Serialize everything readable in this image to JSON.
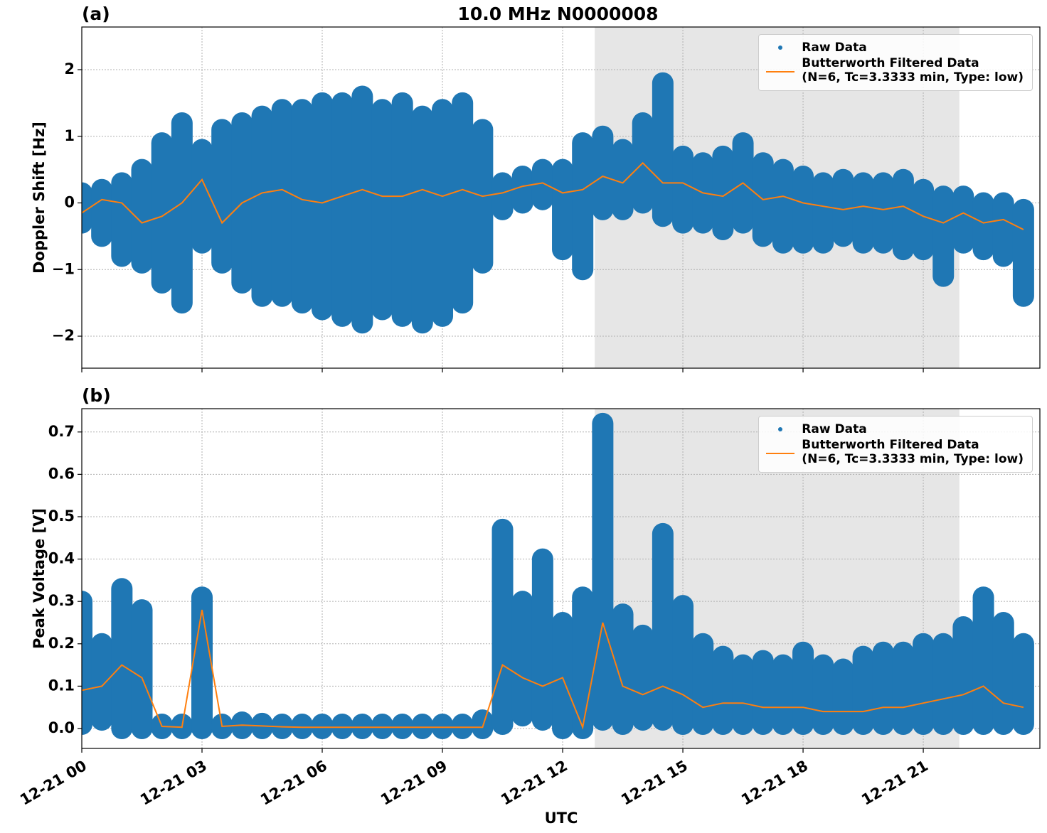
{
  "chart_data": [
    {
      "type": "line",
      "label": "(a)",
      "title": "10.0 MHz N0000008",
      "ylabel": "Doppler Shift [Hz]",
      "xlim": [
        0,
        23.91
      ],
      "ylim": [
        -2.48,
        2.64
      ],
      "yticks": [
        {
          "value": -2,
          "label": "−2"
        },
        {
          "value": -1,
          "label": "−1"
        },
        0,
        1,
        2
      ],
      "grid": true,
      "legend": "upper right",
      "span": [
        12.8,
        21.9
      ],
      "x": [
        0,
        0.5,
        1,
        1.5,
        2,
        2.5,
        3,
        3.5,
        4,
        4.5,
        5,
        5.5,
        6,
        6.5,
        7,
        7.5,
        8,
        8.5,
        9,
        9.5,
        10,
        10.5,
        11,
        11.5,
        12,
        12.5,
        13,
        13.5,
        14,
        14.5,
        15,
        15.5,
        16,
        16.5,
        17,
        17.5,
        18,
        18.5,
        19,
        19.5,
        20,
        20.5,
        21,
        21.5,
        22,
        22.5,
        23,
        23.5
      ],
      "series": [
        {
          "name": "Raw Data",
          "type": "scatter",
          "color": "#1f77b4",
          "high": [
            0.15,
            0.2,
            0.3,
            0.5,
            0.9,
            1.2,
            0.8,
            1.1,
            1.2,
            1.3,
            1.4,
            1.4,
            1.5,
            1.5,
            1.6,
            1.4,
            1.5,
            1.3,
            1.4,
            1.5,
            1.1,
            0.3,
            0.4,
            0.5,
            0.5,
            0.9,
            1.0,
            0.8,
            1.2,
            1.8,
            0.7,
            0.6,
            0.7,
            0.9,
            0.6,
            0.5,
            0.4,
            0.3,
            0.35,
            0.3,
            0.3,
            0.35,
            0.2,
            0.1,
            0.1,
            0.0,
            0.0,
            -0.1
          ],
          "low": [
            -0.3,
            -0.5,
            -0.8,
            -0.9,
            -1.2,
            -1.5,
            -0.6,
            -0.9,
            -1.2,
            -1.4,
            -1.4,
            -1.5,
            -1.6,
            -1.7,
            -1.8,
            -1.6,
            -1.7,
            -1.8,
            -1.7,
            -1.5,
            -0.9,
            -0.1,
            0.0,
            0.05,
            -0.7,
            -1.0,
            -0.1,
            -0.1,
            0.0,
            -0.2,
            -0.3,
            -0.3,
            -0.4,
            -0.3,
            -0.5,
            -0.6,
            -0.6,
            -0.6,
            -0.5,
            -0.6,
            -0.6,
            -0.7,
            -0.7,
            -1.1,
            -0.6,
            -0.7,
            -0.8,
            -1.4
          ]
        },
        {
          "name": "Butterworth Filtered Data\n(N=6, Tc=3.3333 min, Type: low)",
          "type": "line",
          "color": "#ff7f0e",
          "values": [
            -0.15,
            0.05,
            0.0,
            -0.3,
            -0.2,
            0.0,
            0.35,
            -0.3,
            0.0,
            0.15,
            0.2,
            0.05,
            0.0,
            0.1,
            0.2,
            0.1,
            0.1,
            0.2,
            0.1,
            0.2,
            0.1,
            0.15,
            0.25,
            0.3,
            0.15,
            0.2,
            0.4,
            0.3,
            0.6,
            0.3,
            0.3,
            0.15,
            0.1,
            0.3,
            0.05,
            0.1,
            0.0,
            -0.05,
            -0.1,
            -0.05,
            -0.1,
            -0.05,
            -0.2,
            -0.3,
            -0.15,
            -0.3,
            -0.25,
            -0.4
          ]
        }
      ]
    },
    {
      "type": "line",
      "label": "(b)",
      "ylabel": "Peak Voltage [V]",
      "xlabel": "UTC",
      "xlim": [
        0,
        23.91
      ],
      "ylim": [
        -0.047,
        0.755
      ],
      "xticks": [
        {
          "value": 0,
          "label": "12-21 00"
        },
        {
          "value": 3,
          "label": "12-21 03"
        },
        {
          "value": 6,
          "label": "12-21 06"
        },
        {
          "value": 9,
          "label": "12-21 09"
        },
        {
          "value": 12,
          "label": "12-21 12"
        },
        {
          "value": 15,
          "label": "12-21 15"
        },
        {
          "value": 18,
          "label": "12-21 18"
        },
        {
          "value": 21,
          "label": "12-21 21"
        }
      ],
      "yticks": [
        {
          "value": 0,
          "label": "0.0"
        },
        0.1,
        0.2,
        0.3,
        0.4,
        0.5,
        0.6,
        0.7
      ],
      "grid": true,
      "legend": "upper right",
      "span": [
        12.8,
        21.9
      ],
      "x": [
        0,
        0.5,
        1,
        1.5,
        2,
        2.5,
        3,
        3.5,
        4,
        4.5,
        5,
        5.5,
        6,
        6.5,
        7,
        7.5,
        8,
        8.5,
        9,
        9.5,
        10,
        10.5,
        11,
        11.5,
        12,
        12.5,
        13,
        13.5,
        14,
        14.5,
        15,
        15.5,
        16,
        16.5,
        17,
        17.5,
        18,
        18.5,
        19,
        19.5,
        20,
        20.5,
        21,
        21.5,
        22,
        22.5,
        23,
        23.5
      ],
      "series": [
        {
          "name": "Raw Data",
          "type": "scatter",
          "color": "#1f77b4",
          "high": [
            0.3,
            0.2,
            0.33,
            0.28,
            0.01,
            0.01,
            0.31,
            0.01,
            0.015,
            0.012,
            0.01,
            0.01,
            0.01,
            0.01,
            0.01,
            0.01,
            0.01,
            0.01,
            0.01,
            0.01,
            0.02,
            0.47,
            0.3,
            0.4,
            0.25,
            0.31,
            0.72,
            0.27,
            0.22,
            0.46,
            0.29,
            0.2,
            0.17,
            0.15,
            0.16,
            0.15,
            0.18,
            0.15,
            0.14,
            0.17,
            0.18,
            0.18,
            0.2,
            0.2,
            0.24,
            0.31,
            0.25,
            0.2
          ],
          "low": [
            0.01,
            0.02,
            0.0,
            0.0,
            0.0,
            0.0,
            0.0,
            0.0,
            0.0,
            0.0,
            0.0,
            0.0,
            0.0,
            0.0,
            0.0,
            0.0,
            0.0,
            0.0,
            0.0,
            0.0,
            0.0,
            0.01,
            0.03,
            0.02,
            0.0,
            0.0,
            0.02,
            0.01,
            0.02,
            0.02,
            0.01,
            0.01,
            0.01,
            0.01,
            0.01,
            0.01,
            0.01,
            0.01,
            0.01,
            0.01,
            0.01,
            0.01,
            0.01,
            0.01,
            0.01,
            0.01,
            0.01,
            0.01
          ]
        },
        {
          "name": "Butterworth Filtered Data\n(N=6, Tc=3.3333 min, Type: low)",
          "type": "line",
          "color": "#ff7f0e",
          "values": [
            0.09,
            0.1,
            0.15,
            0.12,
            0.005,
            0.003,
            0.28,
            0.005,
            0.008,
            0.006,
            0.004,
            0.003,
            0.003,
            0.003,
            0.003,
            0.003,
            0.003,
            0.003,
            0.003,
            0.003,
            0.003,
            0.15,
            0.12,
            0.1,
            0.12,
            0.003,
            0.25,
            0.1,
            0.08,
            0.1,
            0.08,
            0.05,
            0.06,
            0.06,
            0.05,
            0.05,
            0.05,
            0.04,
            0.04,
            0.04,
            0.05,
            0.05,
            0.06,
            0.07,
            0.08,
            0.1,
            0.06,
            0.05
          ]
        }
      ]
    }
  ]
}
